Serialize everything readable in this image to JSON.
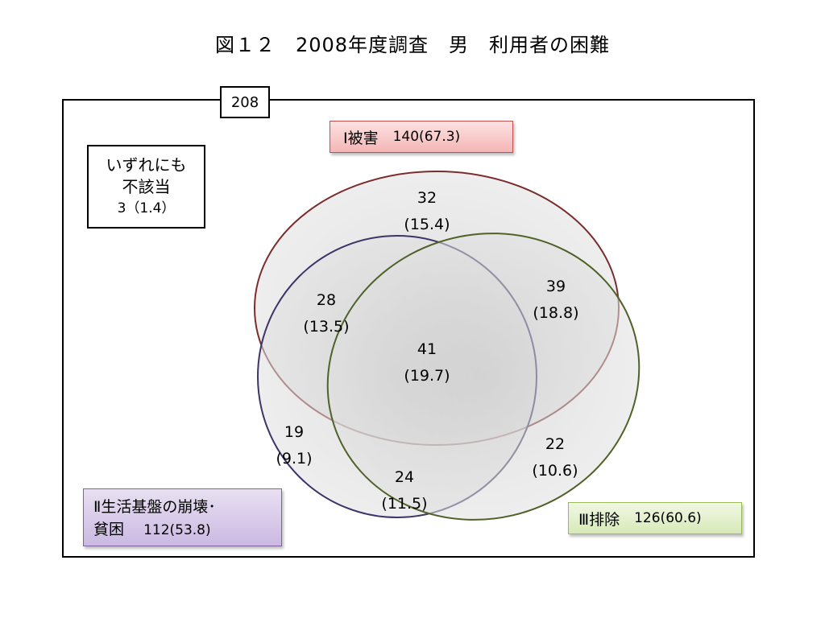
{
  "title": "図１２　2008年度調査　男　利用者の困難",
  "total": "208",
  "none": {
    "line1": "いずれにも",
    "line2": "不該当",
    "value": "3（1.4）"
  },
  "sets": {
    "set1": {
      "label": "Ⅰ被害",
      "value": "140(67.3)",
      "color": "#c0504d"
    },
    "set2": {
      "label": "Ⅱ生活基盤の崩壊･",
      "label2": "貧困",
      "value": "112(53.8)",
      "color": "#8064a2"
    },
    "set3": {
      "label": "Ⅲ排除",
      "value": "126(60.6)",
      "color": "#9bbb59"
    }
  },
  "regions": {
    "only1": {
      "count": "32",
      "pct": "(15.4)"
    },
    "r12": {
      "count": "28",
      "pct": "(13.5)"
    },
    "r13": {
      "count": "39",
      "pct": "(18.8)"
    },
    "r123": {
      "count": "41",
      "pct": "(19.7)"
    },
    "only2": {
      "count": "19",
      "pct": "(9.1)"
    },
    "only3": {
      "count": "22",
      "pct": "(10.6)"
    },
    "r23": {
      "count": "24",
      "pct": "(11.5)"
    }
  }
}
